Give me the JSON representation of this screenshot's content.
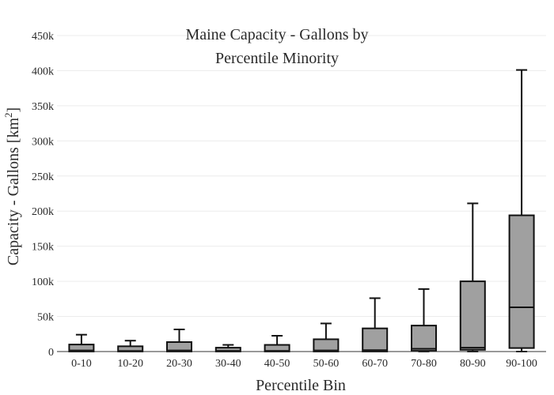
{
  "chart_data": {
    "type": "box",
    "title_lines": [
      "Maine Capacity - Gallons by",
      "Percentile Minority"
    ],
    "xlabel": "Percentile Bin",
    "ylabel_text": "Capacity - Gallons  [km",
    "ylabel_sup": "2",
    "ylabel_close": "]",
    "ylim": [
      0,
      450000
    ],
    "yticks": [
      0,
      50000,
      100000,
      150000,
      200000,
      250000,
      300000,
      350000,
      400000,
      450000
    ],
    "ytick_labels": [
      "0",
      "50k",
      "100k",
      "150k",
      "200k",
      "250k",
      "300k",
      "350k",
      "400k",
      "450k"
    ],
    "grid": true,
    "categories": [
      "0-10",
      "10-20",
      "20-30",
      "30-40",
      "40-50",
      "50-60",
      "60-70",
      "70-80",
      "80-90",
      "90-100"
    ],
    "boxes": [
      {
        "min": 0,
        "q1": 0,
        "median": 1500,
        "q3": 10000,
        "max": 24000
      },
      {
        "min": 0,
        "q1": 0,
        "median": 800,
        "q3": 7500,
        "max": 15500
      },
      {
        "min": 0,
        "q1": 0,
        "median": 1500,
        "q3": 13500,
        "max": 31500
      },
      {
        "min": 0,
        "q1": 0,
        "median": 1000,
        "q3": 5500,
        "max": 9500
      },
      {
        "min": 0,
        "q1": 0,
        "median": 1000,
        "q3": 9500,
        "max": 22500
      },
      {
        "min": 0,
        "q1": 0,
        "median": 1500,
        "q3": 17500,
        "max": 40000
      },
      {
        "min": 0,
        "q1": 0,
        "median": 2000,
        "q3": 33000,
        "max": 76000
      },
      {
        "min": 0,
        "q1": 1000,
        "median": 4000,
        "q3": 37000,
        "max": 89000
      },
      {
        "min": 0,
        "q1": 2500,
        "median": 5500,
        "q3": 100000,
        "max": 211000
      },
      {
        "min": 0,
        "q1": 5000,
        "median": 63000,
        "q3": 194000,
        "max": 401000
      }
    ],
    "colors": {
      "box_fill": "#a0a0a0",
      "box_stroke": "#111111",
      "grid": "#ececec",
      "axis": "#333333"
    }
  }
}
